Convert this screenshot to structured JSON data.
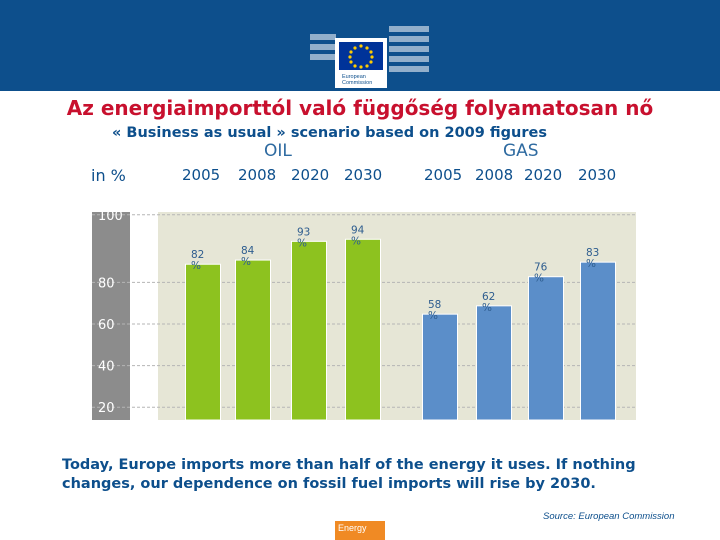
{
  "header": {
    "logo_name": "eu-flag-logo",
    "logo_text": [
      "European",
      "Commission"
    ],
    "band_color": "#0d4f8c"
  },
  "title": "Az energiaimporttól való függőség folyamatosan nő",
  "subtitle": "« Business as usual » scenario based on 2009 figures",
  "chart_data": {
    "type": "bar",
    "ylabel": "in %",
    "ylim": [
      10,
      110
    ],
    "yticks": [
      20,
      40,
      60,
      80,
      100
    ],
    "grid": true,
    "groups": [
      {
        "name": "OIL",
        "color": "#8dc21f",
        "categories": [
          "2005",
          "2008",
          "2020",
          "2030"
        ],
        "values": [
          82,
          84,
          93,
          94
        ],
        "labels": [
          "82 %",
          "84 %",
          "93 %",
          "94 %"
        ]
      },
      {
        "name": "GAS",
        "color": "#5b8ec9",
        "categories": [
          "2005",
          "2008",
          "2020",
          "2030"
        ],
        "values": [
          58,
          62,
          76,
          83
        ],
        "labels": [
          "58 %",
          "62 %",
          "76 %",
          "83 %"
        ]
      }
    ]
  },
  "footer": {
    "text": "Today, Europe imports more than half of the energy it uses. If nothing changes, our dependence on fossil fuel imports will rise by 2030.",
    "source": "Source: European Commission",
    "tag": "Energy"
  }
}
